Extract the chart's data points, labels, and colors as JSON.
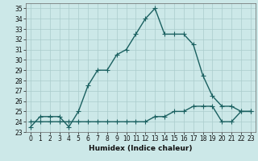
{
  "title": "",
  "xlabel": "Humidex (Indice chaleur)",
  "background_color": "#cce8e8",
  "grid_color": "#aacccc",
  "line_color": "#1a6060",
  "ylim": [
    23,
    35.5
  ],
  "xlim": [
    -0.5,
    23.5
  ],
  "yticks": [
    23,
    24,
    25,
    26,
    27,
    28,
    29,
    30,
    31,
    32,
    33,
    34,
    35
  ],
  "xticks": [
    0,
    1,
    2,
    3,
    4,
    5,
    6,
    7,
    8,
    9,
    10,
    11,
    12,
    13,
    14,
    15,
    16,
    17,
    18,
    19,
    20,
    21,
    22,
    23
  ],
  "series1_x": [
    0,
    1,
    2,
    3,
    4,
    5,
    6,
    7,
    8,
    9,
    10,
    11,
    12,
    13,
    14,
    15,
    16,
    17,
    18,
    19,
    20,
    21,
    22,
    23
  ],
  "series1_y": [
    23.5,
    24.5,
    24.5,
    24.5,
    23.5,
    25.0,
    27.5,
    29.0,
    29.0,
    30.5,
    31.0,
    32.5,
    34.0,
    35.0,
    32.5,
    32.5,
    32.5,
    31.5,
    28.5,
    26.5,
    25.5,
    25.5,
    25.0,
    25.0
  ],
  "series2_x": [
    0,
    1,
    2,
    3,
    4,
    5,
    6,
    7,
    8,
    9,
    10,
    11,
    12,
    13,
    14,
    15,
    16,
    17,
    18,
    19,
    20,
    21,
    22,
    23
  ],
  "series2_y": [
    24.0,
    24.0,
    24.0,
    24.0,
    24.0,
    24.0,
    24.0,
    24.0,
    24.0,
    24.0,
    24.0,
    24.0,
    24.0,
    24.5,
    24.5,
    25.0,
    25.0,
    25.5,
    25.5,
    25.5,
    24.0,
    24.0,
    25.0,
    25.0
  ],
  "marker_size": 4,
  "line_width": 1.0,
  "xlabel_fontsize": 6.5,
  "tick_fontsize": 5.5
}
